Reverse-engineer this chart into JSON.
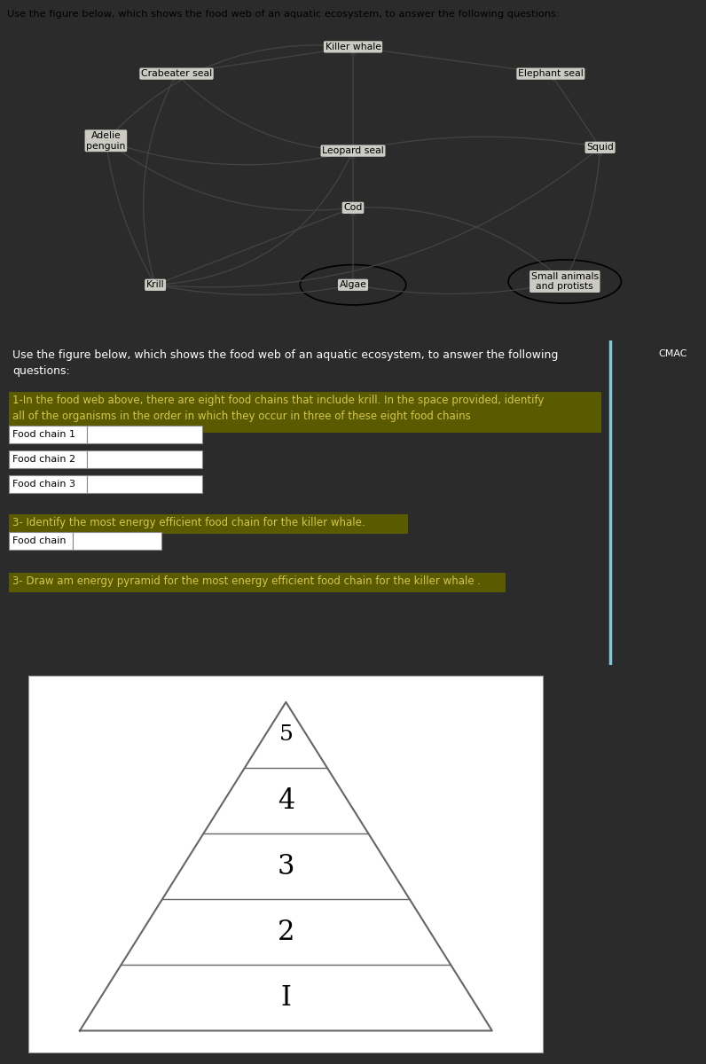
{
  "background_color": "#2b2b2b",
  "top_banner_text": "Use the figure below, which shows the food web of an aquatic ecosystem, to answer the following questions:",
  "top_banner_bg": "#e8e8e0",
  "top_banner_text_color": "#000000",
  "food_web_bg": "#e8e8e0",
  "section2_bg": "#2b2b2b",
  "section2_text_color": "#ffffff",
  "intro_text": "Use the figure below, which shows the food web of an aquatic ecosystem, to answer the following\nquestions:",
  "cmac_text": "CMAC",
  "cmac_color": "#ffffff",
  "highlight_bg": "#5a5a00",
  "highlight_text_color": "#d4c84a",
  "q1_text": "1-In the food web above, there are eight food chains that include krill. In the space provided, identify\nall of the organisms in the order in which they occur in three of these eight food chains",
  "food_chain_labels": [
    "Food chain 1",
    "Food chain 2",
    "Food chain 3"
  ],
  "q2_text": "3- Identify the most energy efficient food chain for the killer whale.",
  "q2_input_label": "Food chain",
  "q3_text": "3- Draw am energy pyramid for the most energy efficient food chain for the killer whale .",
  "pyramid_bg": "#ffffff",
  "pyramid_border": "#999999",
  "pyramid_levels": [
    "5",
    "4",
    "3",
    "2",
    "I"
  ],
  "pyramid_line_color": "#666666",
  "pyramid_text_color": "#000000",
  "divider_color": "#7ec8d8",
  "arrow_color": "#444444",
  "box_border": "#888888",
  "box_bg": "#ffffff",
  "box_text_color": "#000000"
}
